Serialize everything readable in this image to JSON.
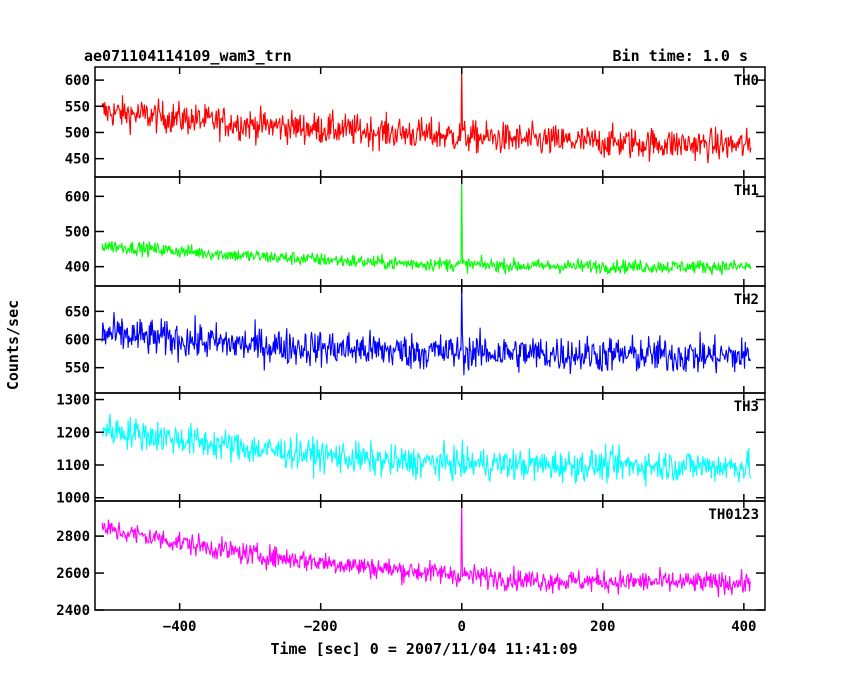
{
  "chart_data": {
    "type": "line",
    "title": "ae071104114109_wam3_trn",
    "subtitle": "Bin time: 1.0 s",
    "xlabel": "Time [sec] 0 = 2007/11/04 11:41:09",
    "ylabel": "Counts/sec",
    "xlim": [
      -520,
      430
    ],
    "x_ticks": [
      -400,
      -200,
      0,
      200,
      400
    ],
    "x_tick_labels": [
      "−400",
      "−200",
      "0",
      "200",
      "400"
    ],
    "x_data_range": [
      -510,
      410
    ],
    "bin_time_s": 1.0,
    "grid": false,
    "legend": "none",
    "panels": [
      {
        "name": "TH0",
        "color": "#ff0000",
        "ylim": [
          415,
          625
        ],
        "y_ticks": [
          450,
          500,
          550,
          600
        ],
        "y_tick_labels": [
          "450",
          "500",
          "550",
          "600"
        ],
        "trend": [
          [
            -510,
            540
          ],
          [
            -300,
            515
          ],
          [
            -100,
            500
          ],
          [
            100,
            485
          ],
          [
            300,
            478
          ],
          [
            410,
            475
          ]
        ],
        "noise_amplitude": 28,
        "spike": {
          "x": 0,
          "y": 625
        }
      },
      {
        "name": "TH1",
        "color": "#00ff00",
        "ylim": [
          345,
          655
        ],
        "y_ticks": [
          400,
          500,
          600
        ],
        "y_tick_labels": [
          "400",
          "500",
          "600"
        ],
        "trend": [
          [
            -510,
            460
          ],
          [
            -300,
            430
          ],
          [
            -100,
            410
          ],
          [
            100,
            402
          ],
          [
            300,
            400
          ],
          [
            410,
            400
          ]
        ],
        "noise_amplitude": 18,
        "spike": {
          "x": 0,
          "y": 655
        }
      },
      {
        "name": "TH2",
        "color": "#0000ff",
        "ylim": [
          505,
          695
        ],
        "y_ticks": [
          550,
          600,
          650
        ],
        "y_tick_labels": [
          "550",
          "600",
          "650"
        ],
        "trend": [
          [
            -510,
            610
          ],
          [
            -300,
            590
          ],
          [
            -100,
            580
          ],
          [
            100,
            575
          ],
          [
            300,
            572
          ],
          [
            410,
            570
          ]
        ],
        "noise_amplitude": 30,
        "spike": {
          "x": 0,
          "y": 695
        }
      },
      {
        "name": "TH3",
        "color": "#00ffff",
        "ylim": [
          990,
          1320
        ],
        "y_ticks": [
          1000,
          1100,
          1200,
          1300
        ],
        "y_tick_labels": [
          "1000",
          "1100",
          "1200",
          "1300"
        ],
        "trend": [
          [
            -510,
            1210
          ],
          [
            -300,
            1150
          ],
          [
            -100,
            1110
          ],
          [
            100,
            1100
          ],
          [
            300,
            1098
          ],
          [
            410,
            1095
          ]
        ],
        "noise_amplitude": 45,
        "spike": null
      },
      {
        "name": "TH0123",
        "color": "#ff00ff",
        "ylim": [
          2400,
          2990
        ],
        "y_ticks": [
          2400,
          2600,
          2800
        ],
        "y_tick_labels": [
          "2400",
          "2600",
          "2800"
        ],
        "trend": [
          [
            -510,
            2840
          ],
          [
            -300,
            2700
          ],
          [
            -100,
            2620
          ],
          [
            100,
            2560
          ],
          [
            300,
            2550
          ],
          [
            410,
            2545
          ]
        ],
        "noise_amplitude": 55,
        "spike": {
          "x": 0,
          "y": 2990
        }
      }
    ]
  }
}
